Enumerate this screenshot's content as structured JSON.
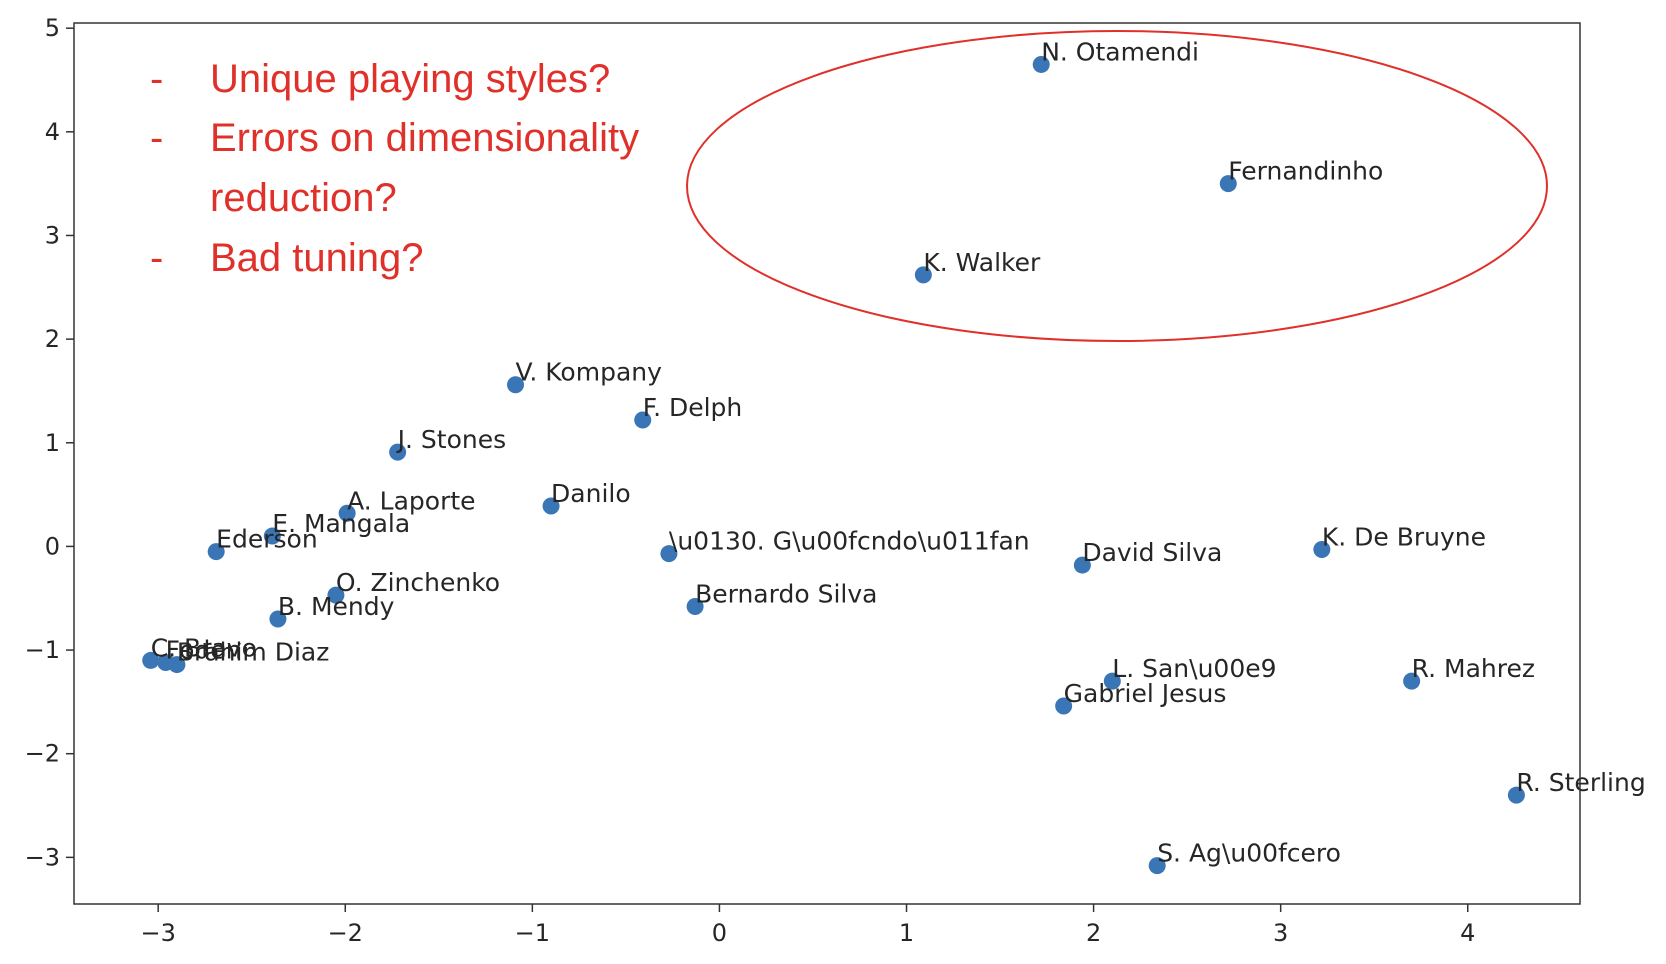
{
  "chart_data": {
    "type": "scatter",
    "xlim": [
      -3.45,
      4.6
    ],
    "ylim": [
      -3.45,
      5.05
    ],
    "x_ticks": [
      -3,
      -2,
      -1,
      0,
      1,
      2,
      3,
      4
    ],
    "y_ticks": [
      -3,
      -2,
      -1,
      0,
      1,
      2,
      3,
      4,
      5
    ],
    "x_tick_labels": [
      "−3",
      "−2",
      "−1",
      "0",
      "1",
      "2",
      "3",
      "4"
    ],
    "y_tick_labels": [
      "−3",
      "−2",
      "−1",
      "0",
      "1",
      "2",
      "3",
      "4",
      "5"
    ],
    "grid": false,
    "point_color": "#3a76b5",
    "points": [
      {
        "label": "N. Otamendi",
        "x": 1.72,
        "y": 4.65
      },
      {
        "label": "Fernandinho",
        "x": 2.72,
        "y": 3.5
      },
      {
        "label": "K. Walker",
        "x": 1.09,
        "y": 2.62
      },
      {
        "label": "V. Kompany",
        "x": -1.09,
        "y": 1.56
      },
      {
        "label": "F. Delph",
        "x": -0.41,
        "y": 1.22
      },
      {
        "label": "J. Stones",
        "x": -1.72,
        "y": 0.91
      },
      {
        "label": "Danilo",
        "x": -0.9,
        "y": 0.39
      },
      {
        "label": "A. Laporte",
        "x": -1.99,
        "y": 0.32
      },
      {
        "label": "E. Mangala",
        "x": -2.39,
        "y": 0.1
      },
      {
        "label": "Ederson",
        "x": -2.69,
        "y": -0.05
      },
      {
        "label": "\\u0130. G\\u00fcndo\\u011fan",
        "x": -0.27,
        "y": -0.07
      },
      {
        "label": "David Silva",
        "x": 1.94,
        "y": -0.18
      },
      {
        "label": "K. De Bruyne",
        "x": 3.22,
        "y": -0.03
      },
      {
        "label": "O. Zinchenko",
        "x": -2.05,
        "y": -0.47
      },
      {
        "label": "B. Mendy",
        "x": -2.36,
        "y": -0.7
      },
      {
        "label": "Bernardo Silva",
        "x": -0.13,
        "y": -0.58
      },
      {
        "label": "C. Bravo",
        "x": -3.04,
        "y": -1.1
      },
      {
        "label": "Foden",
        "x": -2.96,
        "y": -1.12
      },
      {
        "label": "Brahim Diaz",
        "x": -2.9,
        "y": -1.14
      },
      {
        "label": "L. San\\u00e9",
        "x": 2.1,
        "y": -1.3
      },
      {
        "label": "Gabriel Jesus",
        "x": 1.84,
        "y": -1.54
      },
      {
        "label": "R. Mahrez",
        "x": 3.7,
        "y": -1.3
      },
      {
        "label": "R. Sterling",
        "x": 4.26,
        "y": -2.4
      },
      {
        "label": "S. Ag\\u00fcero",
        "x": 2.34,
        "y": -3.08
      }
    ]
  },
  "annotation": {
    "color": "#e0302a",
    "lines": [
      {
        "bullet": "-",
        "text": "Unique playing styles?"
      },
      {
        "bullet": "-",
        "text": "Errors on dimensionality"
      },
      {
        "bullet": "",
        "text": "reduction?"
      },
      {
        "bullet": "-",
        "text": "Bad tuning?"
      }
    ]
  }
}
